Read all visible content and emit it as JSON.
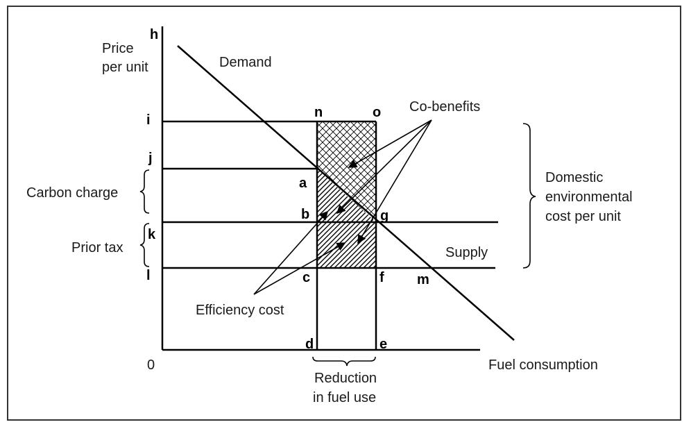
{
  "axes": {
    "y_label_line1": "Price",
    "y_label_line2": "per unit",
    "x_label": "Fuel consumption",
    "origin": "0"
  },
  "curves": {
    "demand": "Demand",
    "supply": "Supply"
  },
  "points": {
    "h": "h",
    "i": "i",
    "j": "j",
    "k": "k",
    "l": "l",
    "n": "n",
    "o": "o",
    "a": "a",
    "b": "b",
    "g": "g",
    "c": "c",
    "f": "f",
    "m": "m",
    "d": "d",
    "e": "e"
  },
  "annotations": {
    "co_benefits": "Co-benefits",
    "efficiency_cost": "Efficiency cost",
    "carbon_charge": "Carbon charge",
    "prior_tax": "Prior tax",
    "domestic_line1": "Domestic",
    "domestic_line2": "environmental",
    "domestic_line3": "cost per unit",
    "reduction_line1": "Reduction",
    "reduction_line2": "in fuel use"
  }
}
